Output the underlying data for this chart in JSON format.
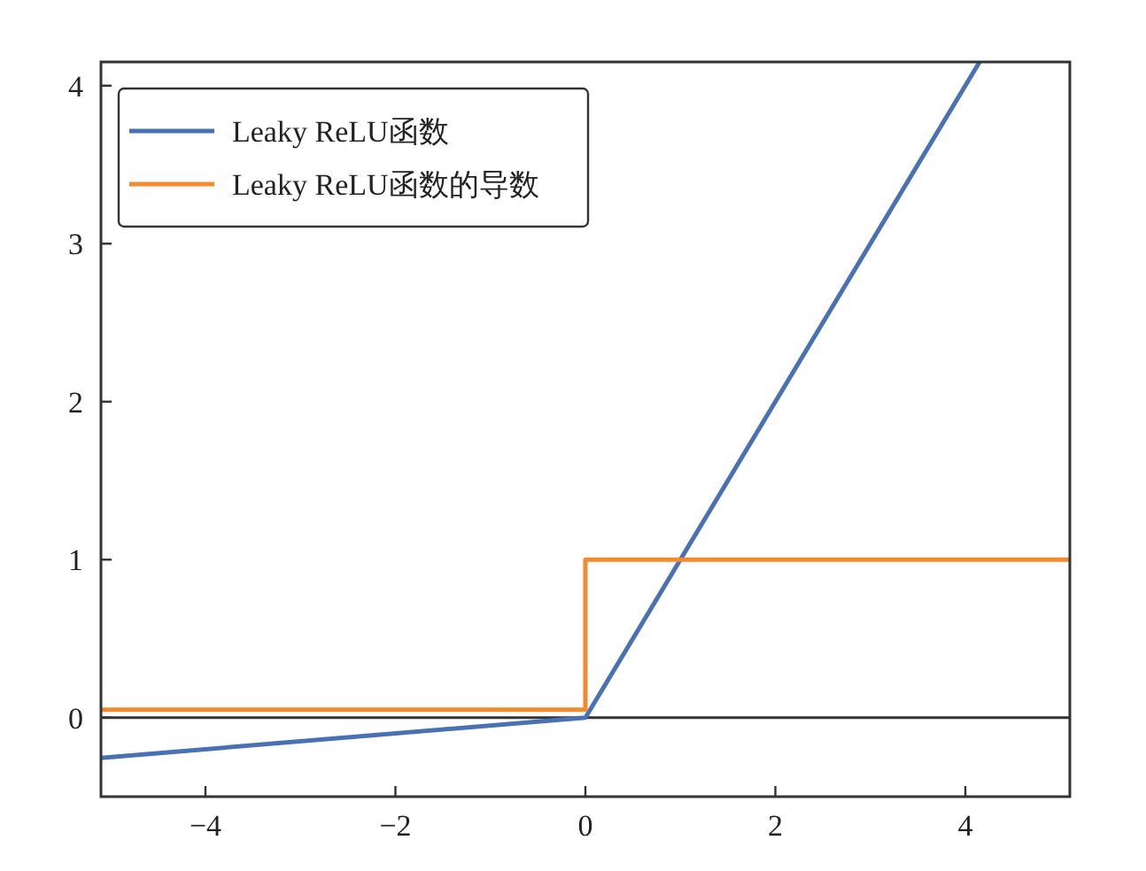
{
  "chart_data": {
    "type": "line",
    "xlim": [
      -5.1,
      5.1
    ],
    "ylim": [
      -0.5,
      4.15
    ],
    "xticks": [
      {
        "value": -4,
        "label": "−4"
      },
      {
        "value": -2,
        "label": "−2"
      },
      0,
      2,
      4
    ],
    "yticks": [
      0,
      1,
      2,
      3,
      4
    ],
    "legend": "top left",
    "grid": false,
    "marker": "none",
    "line_style": "solid",
    "ref_lines": [
      {
        "axis": "y",
        "value": 0,
        "color": "#333333"
      }
    ],
    "series": [
      {
        "name": "Leaky ReLU函数",
        "color": "#4a72b2",
        "x": [
          -5.1,
          0,
          4.15
        ],
        "values": [
          -0.255,
          0,
          4.15
        ]
      },
      {
        "name": "Leaky ReLU函数的导数",
        "color": "#f28a30",
        "type": "step",
        "x": [
          -5.1,
          0,
          5.1
        ],
        "values": [
          0.05,
          1,
          1
        ]
      }
    ]
  }
}
